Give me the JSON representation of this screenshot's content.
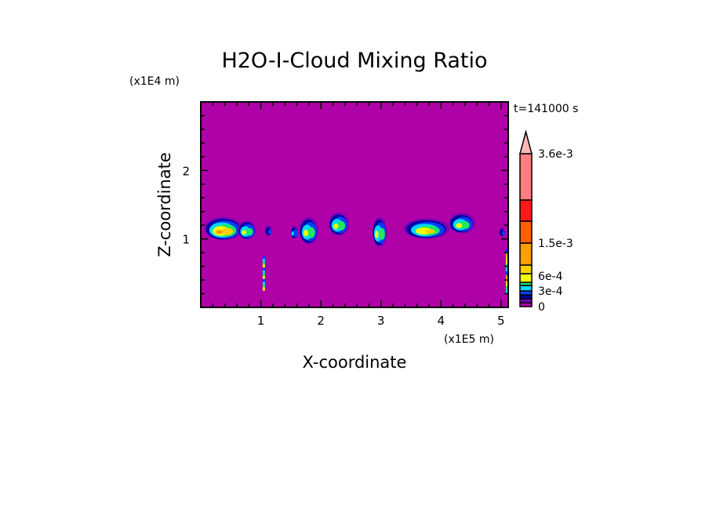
{
  "chart_data": {
    "type": "heatmap",
    "title": "H2O-I-Cloud Mixing Ratio",
    "xlabel": "X-coordinate",
    "ylabel": "Z-coordinate",
    "x_unit": "(x1E5 m)",
    "y_unit": "(x1E4 m)",
    "time_label": "t=141000 s",
    "xlim": [
      0,
      5.12
    ],
    "ylim": [
      0,
      3.0
    ],
    "xticks": [
      1,
      2,
      3,
      4,
      5
    ],
    "xtick_labels": [
      "1",
      "2",
      "3",
      "4",
      "5"
    ],
    "yticks": [
      1,
      2
    ],
    "ytick_labels": [
      "1",
      "2"
    ],
    "background_color": "#b000a8",
    "colorbar": {
      "labels": [
        {
          "text": "3.6e-3",
          "value": 0.0036
        },
        {
          "text": "1.5e-3",
          "value": 0.0015
        },
        {
          "text": "6e-4",
          "value": 0.0006
        },
        {
          "text": "3e-4",
          "value": 0.0003
        },
        {
          "text": "0",
          "value": 0
        }
      ],
      "bins": [
        {
          "color": "#b000a8",
          "lo": 0
        },
        {
          "color": "#7a00b8",
          "lo": 5e-05
        },
        {
          "color": "#0000a0",
          "lo": 0.0001
        },
        {
          "color": "#0040ff",
          "lo": 0.0002
        },
        {
          "color": "#00d8ff",
          "lo": 0.0003
        },
        {
          "color": "#20e860",
          "lo": 0.0004
        },
        {
          "color": "#f0ff00",
          "lo": 0.0006
        },
        {
          "color": "#ffd000",
          "lo": 0.0009
        },
        {
          "color": "#ffa000",
          "lo": 0.0012
        },
        {
          "color": "#ff6000",
          "lo": 0.0015
        },
        {
          "color": "#ff1818",
          "lo": 0.0021
        },
        {
          "color": "#ff7f7f",
          "lo": 0.0027
        },
        {
          "color": "#ffb8b8",
          "lo": 0.0036
        }
      ]
    },
    "clouds": [
      {
        "x": 0.38,
        "z": 1.15,
        "rx": 0.32,
        "rz": 0.17,
        "peak_bin": 8
      },
      {
        "x": 0.77,
        "z": 1.13,
        "rx": 0.15,
        "rz": 0.14,
        "peak_bin": 6
      },
      {
        "x": 1.13,
        "z": 1.12,
        "rx": 0.06,
        "rz": 0.08,
        "peak_bin": 3
      },
      {
        "x": 1.56,
        "z": 1.1,
        "rx": 0.06,
        "rz": 0.1,
        "peak_bin": 4
      },
      {
        "x": 1.8,
        "z": 1.12,
        "rx": 0.16,
        "rz": 0.2,
        "peak_bin": 6
      },
      {
        "x": 2.3,
        "z": 1.22,
        "rx": 0.17,
        "rz": 0.17,
        "peak_bin": 6
      },
      {
        "x": 2.98,
        "z": 1.1,
        "rx": 0.12,
        "rz": 0.22,
        "peak_bin": 6
      },
      {
        "x": 3.76,
        "z": 1.15,
        "rx": 0.38,
        "rz": 0.15,
        "peak_bin": 7
      },
      {
        "x": 4.35,
        "z": 1.23,
        "rx": 0.22,
        "rz": 0.15,
        "peak_bin": 6
      },
      {
        "x": 5.02,
        "z": 1.1,
        "rx": 0.05,
        "rz": 0.07,
        "peak_bin": 3
      }
    ],
    "streaks": [
      {
        "x": 1.05,
        "z0": 0.25,
        "z1": 0.75,
        "peak_bin": 6
      },
      {
        "x": 5.1,
        "z0": 0.2,
        "z1": 0.85,
        "peak_bin": 8
      }
    ]
  }
}
